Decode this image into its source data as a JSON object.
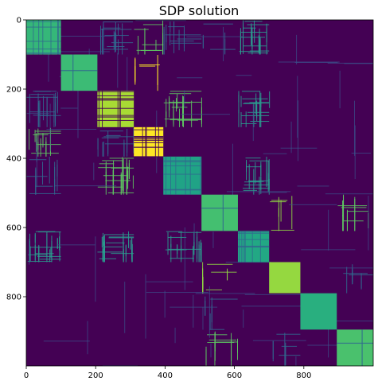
{
  "chart_data": {
    "type": "heatmap",
    "title": "SDP solution",
    "matrix_size": 1000,
    "xlim": [
      0,
      1000
    ],
    "ylim": [
      1000,
      0
    ],
    "x_ticks": [
      0,
      200,
      400,
      600,
      800
    ],
    "y_ticks": [
      0,
      200,
      400,
      600,
      800
    ],
    "grid": false,
    "colormap": "viridis",
    "colors": {
      "background": "#440154",
      "teal": "#31688e",
      "cyan": "#21918c",
      "green": "#35b779",
      "lightgreen": "#5ec962",
      "lime": "#90d743",
      "yellow": "#fde725"
    },
    "diagonal_blocks": [
      {
        "start": 0,
        "end": 100,
        "color": "#35b779",
        "texture": "grid"
      },
      {
        "start": 100,
        "end": 205,
        "color": "#3cbb75",
        "texture": "cross"
      },
      {
        "start": 205,
        "end": 310,
        "color": "#a8db34",
        "texture": "stripes"
      },
      {
        "start": 310,
        "end": 395,
        "color": "#fde725",
        "texture": "stripes"
      },
      {
        "start": 395,
        "end": 505,
        "color": "#20a386",
        "texture": "grid"
      },
      {
        "start": 505,
        "end": 610,
        "color": "#44bf70",
        "texture": "cross"
      },
      {
        "start": 610,
        "end": 700,
        "color": "#22a884",
        "texture": "grid"
      },
      {
        "start": 700,
        "end": 790,
        "color": "#95d840",
        "texture": "plain"
      },
      {
        "start": 790,
        "end": 895,
        "color": "#29af7f",
        "texture": "plain"
      },
      {
        "start": 895,
        "end": 1000,
        "color": "#4ac16d",
        "texture": "cross"
      }
    ],
    "offdiag_blocks": [
      {
        "rows": [
          0,
          100
        ],
        "cols": [
          205,
          310
        ],
        "density": 0.35,
        "color": "#31688e"
      },
      {
        "rows": [
          0,
          100
        ],
        "cols": [
          310,
          395
        ],
        "density": 0.25,
        "color": "#5ec962"
      },
      {
        "rows": [
          0,
          100
        ],
        "cols": [
          395,
          505
        ],
        "density": 0.25,
        "color": "#31688e"
      },
      {
        "rows": [
          0,
          100
        ],
        "cols": [
          610,
          700
        ],
        "density": 0.45,
        "color": "#2a9d8f"
      },
      {
        "rows": [
          205,
          310
        ],
        "cols": [
          0,
          100
        ],
        "density": 0.35,
        "color": "#31688e"
      },
      {
        "rows": [
          205,
          310
        ],
        "cols": [
          395,
          505
        ],
        "density": 0.4,
        "color": "#5ec962"
      },
      {
        "rows": [
          205,
          310
        ],
        "cols": [
          610,
          700
        ],
        "density": 0.45,
        "color": "#2a9d8f"
      },
      {
        "rows": [
          310,
          395
        ],
        "cols": [
          0,
          100
        ],
        "density": 0.3,
        "color": "#5ec962"
      },
      {
        "rows": [
          310,
          395
        ],
        "cols": [
          205,
          310
        ],
        "density": 0.3,
        "color": "#31688e"
      },
      {
        "rows": [
          395,
          505
        ],
        "cols": [
          205,
          310
        ],
        "density": 0.4,
        "color": "#5ec962"
      },
      {
        "rows": [
          395,
          505
        ],
        "cols": [
          610,
          700
        ],
        "density": 0.4,
        "color": "#2a9d8f"
      },
      {
        "rows": [
          395,
          505
        ],
        "cols": [
          0,
          100
        ],
        "density": 0.2,
        "color": "#31688e"
      },
      {
        "rows": [
          610,
          700
        ],
        "cols": [
          0,
          100
        ],
        "density": 0.45,
        "color": "#2a9d8f"
      },
      {
        "rows": [
          610,
          700
        ],
        "cols": [
          205,
          310
        ],
        "density": 0.45,
        "color": "#2a9d8f"
      },
      {
        "rows": [
          610,
          700
        ],
        "cols": [
          395,
          505
        ],
        "density": 0.35,
        "color": "#2a9d8f"
      },
      {
        "rows": [
          505,
          610
        ],
        "cols": [
          700,
          790
        ],
        "density": 0.15,
        "color": "#90d743"
      },
      {
        "rows": [
          505,
          610
        ],
        "cols": [
          895,
          1000
        ],
        "density": 0.2,
        "color": "#5ec962"
      },
      {
        "rows": [
          700,
          790
        ],
        "cols": [
          505,
          610
        ],
        "density": 0.15,
        "color": "#90d743"
      },
      {
        "rows": [
          700,
          790
        ],
        "cols": [
          895,
          1000
        ],
        "density": 0.1,
        "color": "#31688e"
      },
      {
        "rows": [
          895,
          1000
        ],
        "cols": [
          505,
          610
        ],
        "density": 0.2,
        "color": "#5ec962"
      },
      {
        "rows": [
          895,
          1000
        ],
        "cols": [
          700,
          790
        ],
        "density": 0.15,
        "color": "#31688e"
      },
      {
        "rows": [
          790,
          895
        ],
        "cols": [
          505,
          610
        ],
        "density": 0.1,
        "color": "#31688e"
      },
      {
        "rows": [
          0,
          100
        ],
        "cols": [
          505,
          610
        ],
        "density": 0.08,
        "color": "#31688e"
      },
      {
        "rows": [
          100,
          205
        ],
        "cols": [
          310,
          395
        ],
        "density": 0.08,
        "color": "#fde725"
      }
    ]
  }
}
